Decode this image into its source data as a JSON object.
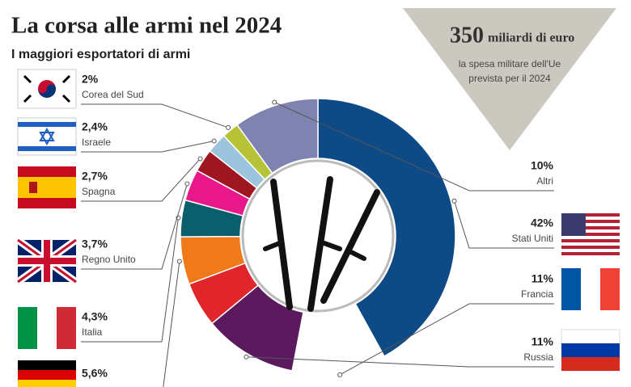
{
  "chart_data": {
    "type": "donut",
    "title": "La corsa alle armi nel 2024",
    "subtitle": "I maggiori esportatori di armi",
    "annotation": {
      "headline": "350",
      "headline_unit": "miliardi di euro",
      "text_line1": "la spesa militare dell'Ue",
      "text_line2": "prevista per il 2024"
    },
    "categories": [
      "Stati Uniti",
      "Francia",
      "Russia",
      null,
      null,
      "Italia",
      "Regno Unito",
      "Spagna",
      "Israele",
      "Corea del Sud",
      "Altri"
    ],
    "values": [
      42,
      11,
      11,
      5.3,
      5.6,
      4.3,
      3.7,
      2.7,
      2.4,
      2,
      10
    ],
    "value_labels": [
      "42%",
      "11%",
      "11%",
      null,
      "5,6%",
      "4,3%",
      "3,7%",
      "2,7%",
      "2,4%",
      "2%",
      "10%"
    ],
    "colors": [
      "#0d4a86",
      "#ffffff",
      "#5b1a5e",
      "#e0262b",
      "#f07a1a",
      "#0b5e6b",
      "#e8178a",
      "#9e1620",
      "#9cc4dc",
      "#b6c337",
      "#7f83b0"
    ]
  }
}
